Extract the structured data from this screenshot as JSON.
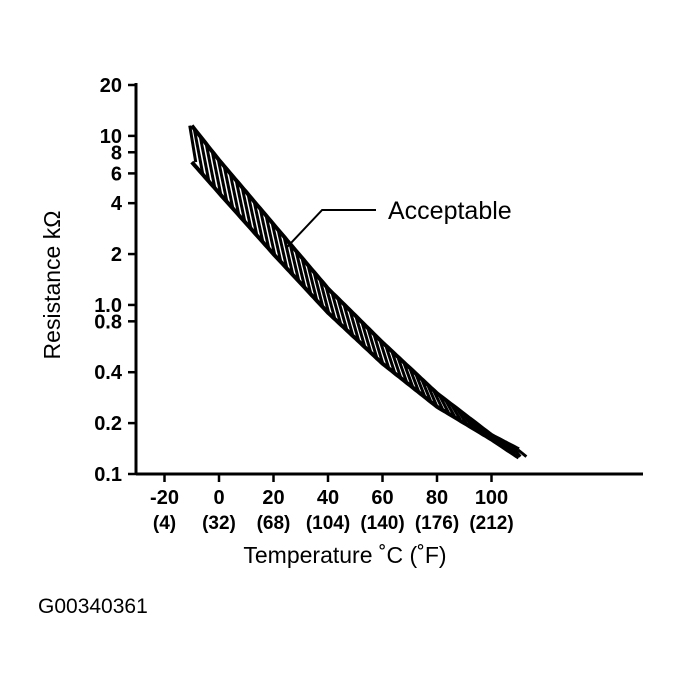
{
  "figure_id": "G00340361",
  "chart_data": {
    "type": "area",
    "ylabel": "Resistance kΩ",
    "xlabel": "Temperature ˚C (˚F)",
    "y_scale": "log",
    "ylim": [
      0.1,
      20
    ],
    "xlim": [
      -30,
      150
    ],
    "y_ticks": [
      {
        "value": 20,
        "label": "20"
      },
      {
        "value": 10,
        "label": "10"
      },
      {
        "value": 8,
        "label": "8"
      },
      {
        "value": 6,
        "label": "6"
      },
      {
        "value": 4,
        "label": "4"
      },
      {
        "value": 2,
        "label": "2"
      },
      {
        "value": 1.0,
        "label": "1.0"
      },
      {
        "value": 0.8,
        "label": "0.8"
      },
      {
        "value": 0.4,
        "label": "0.4"
      },
      {
        "value": 0.2,
        "label": "0.2"
      },
      {
        "value": 0.1,
        "label": "0.1"
      }
    ],
    "x_ticks": [
      {
        "value": -20,
        "label": "-20",
        "sublabel": "(4)"
      },
      {
        "value": 0,
        "label": "0",
        "sublabel": "(32)"
      },
      {
        "value": 20,
        "label": "20",
        "sublabel": "(68)"
      },
      {
        "value": 40,
        "label": "40",
        "sublabel": "(104)"
      },
      {
        "value": 60,
        "label": "60",
        "sublabel": "(140)"
      },
      {
        "value": 80,
        "label": "80",
        "sublabel": "(176)"
      },
      {
        "value": 100,
        "label": "100",
        "sublabel": "(212)"
      }
    ],
    "series": [
      {
        "name": "Acceptable",
        "x": [
          -10,
          0,
          20,
          40,
          60,
          80,
          100,
          110
        ],
        "upper": [
          11.5,
          7.2,
          3.0,
          1.25,
          0.6,
          0.3,
          0.17,
          0.14
        ],
        "lower": [
          7.0,
          4.6,
          2.0,
          0.9,
          0.45,
          0.25,
          0.16,
          0.125
        ]
      }
    ],
    "annotations": [
      {
        "text": "Acceptable",
        "points_to": {
          "x": 25,
          "y": 2.2
        }
      }
    ],
    "grid": false
  }
}
